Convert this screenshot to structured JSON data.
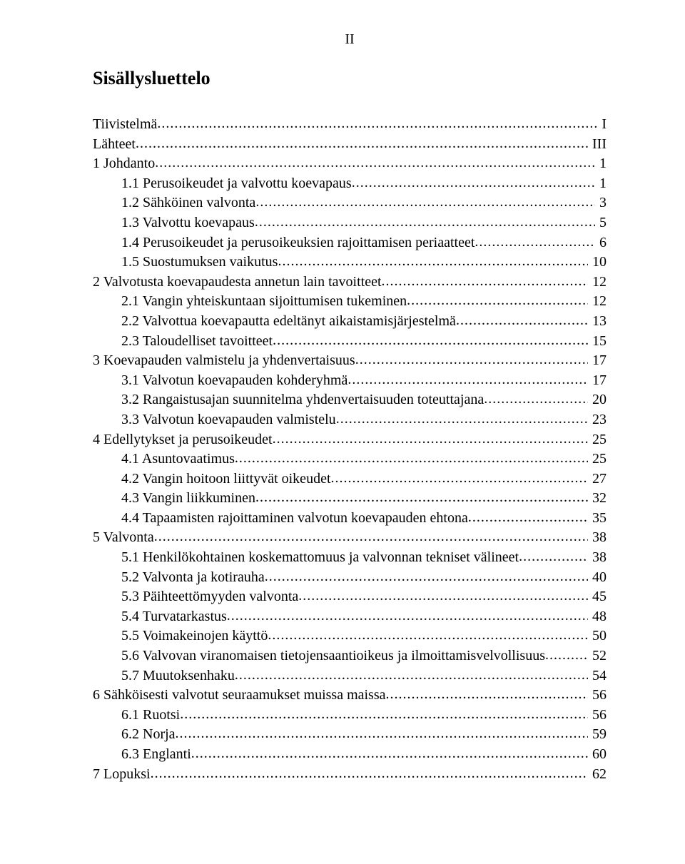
{
  "page_numeral": "II",
  "title": "Sisällysluettelo",
  "font": {
    "family": "Times New Roman",
    "title_size_pt": 20,
    "body_size_pt": 15
  },
  "colors": {
    "text": "#000000",
    "background": "#ffffff"
  },
  "entries": [
    {
      "indent": 0,
      "label": "Tiivistelmä",
      "page": "I"
    },
    {
      "indent": 0,
      "label": "Lähteet",
      "page": "III"
    },
    {
      "indent": 1,
      "label": "1    Johdanto",
      "page": "1"
    },
    {
      "indent": 2,
      "label": "1.1    Perusoikeudet ja valvottu koevapaus",
      "page": "1"
    },
    {
      "indent": 2,
      "label": "1.2    Sähköinen valvonta",
      "page": "3"
    },
    {
      "indent": 2,
      "label": "1.3    Valvottu koevapaus",
      "page": "5"
    },
    {
      "indent": 2,
      "label": "1.4    Perusoikeudet ja perusoikeuksien rajoittamisen periaatteet",
      "page": "6"
    },
    {
      "indent": 2,
      "label": "1.5    Suostumuksen vaikutus",
      "page": "10"
    },
    {
      "indent": 1,
      "label": "2    Valvotusta koevapaudesta annetun lain tavoitteet",
      "page": "12"
    },
    {
      "indent": 2,
      "label": "2.1    Vangin yhteiskuntaan sijoittumisen tukeminen",
      "page": "12"
    },
    {
      "indent": 2,
      "label": "2.2    Valvottua koevapautta edeltänyt aikaistamisjärjestelmä",
      "page": "13"
    },
    {
      "indent": 2,
      "label": "2.3    Taloudelliset tavoitteet",
      "page": "15"
    },
    {
      "indent": 1,
      "label": "3    Koevapauden valmistelu ja yhdenvertaisuus",
      "page": "17"
    },
    {
      "indent": 2,
      "label": "3.1    Valvotun koevapauden kohderyhmä",
      "page": "17"
    },
    {
      "indent": 2,
      "label": "3.2    Rangaistusajan suunnitelma yhdenvertaisuuden toteuttajana",
      "page": "20"
    },
    {
      "indent": 2,
      "label": "3.3    Valvotun koevapauden valmistelu",
      "page": "23"
    },
    {
      "indent": 1,
      "label": "4    Edellytykset ja perusoikeudet",
      "page": "25"
    },
    {
      "indent": 2,
      "label": "4.1    Asuntovaatimus",
      "page": "25"
    },
    {
      "indent": 2,
      "label": "4.2    Vangin hoitoon liittyvät oikeudet",
      "page": "27"
    },
    {
      "indent": 2,
      "label": "4.3    Vangin liikkuminen",
      "page": "32"
    },
    {
      "indent": 2,
      "label": "4.4    Tapaamisten rajoittaminen valvotun koevapauden ehtona",
      "page": "35"
    },
    {
      "indent": 1,
      "label": "5    Valvonta",
      "page": "38"
    },
    {
      "indent": 2,
      "label": "5.1    Henkilökohtainen koskemattomuus ja valvonnan tekniset välineet",
      "page": "38"
    },
    {
      "indent": 2,
      "label": "5.2    Valvonta ja kotirauha",
      "page": "40"
    },
    {
      "indent": 2,
      "label": "5.3    Päihteettömyyden valvonta",
      "page": "45"
    },
    {
      "indent": 2,
      "label": "5.4    Turvatarkastus",
      "page": "48"
    },
    {
      "indent": 2,
      "label": "5.5    Voimakeinojen käyttö",
      "page": "50"
    },
    {
      "indent": 2,
      "label": "5.6    Valvovan viranomaisen tietojensaantioikeus ja ilmoittamisvelvollisuus",
      "page": "52"
    },
    {
      "indent": 2,
      "label": "5.7    Muutoksenhaku",
      "page": "54"
    },
    {
      "indent": 1,
      "label": "6    Sähköisesti valvotut seuraamukset muissa maissa",
      "page": "56"
    },
    {
      "indent": 2,
      "label": "6.1    Ruotsi",
      "page": "56"
    },
    {
      "indent": 2,
      "label": "6.2    Norja",
      "page": "59"
    },
    {
      "indent": 2,
      "label": "6.3    Englanti",
      "page": "60"
    },
    {
      "indent": 1,
      "label": "7    Lopuksi",
      "page": "62"
    }
  ]
}
